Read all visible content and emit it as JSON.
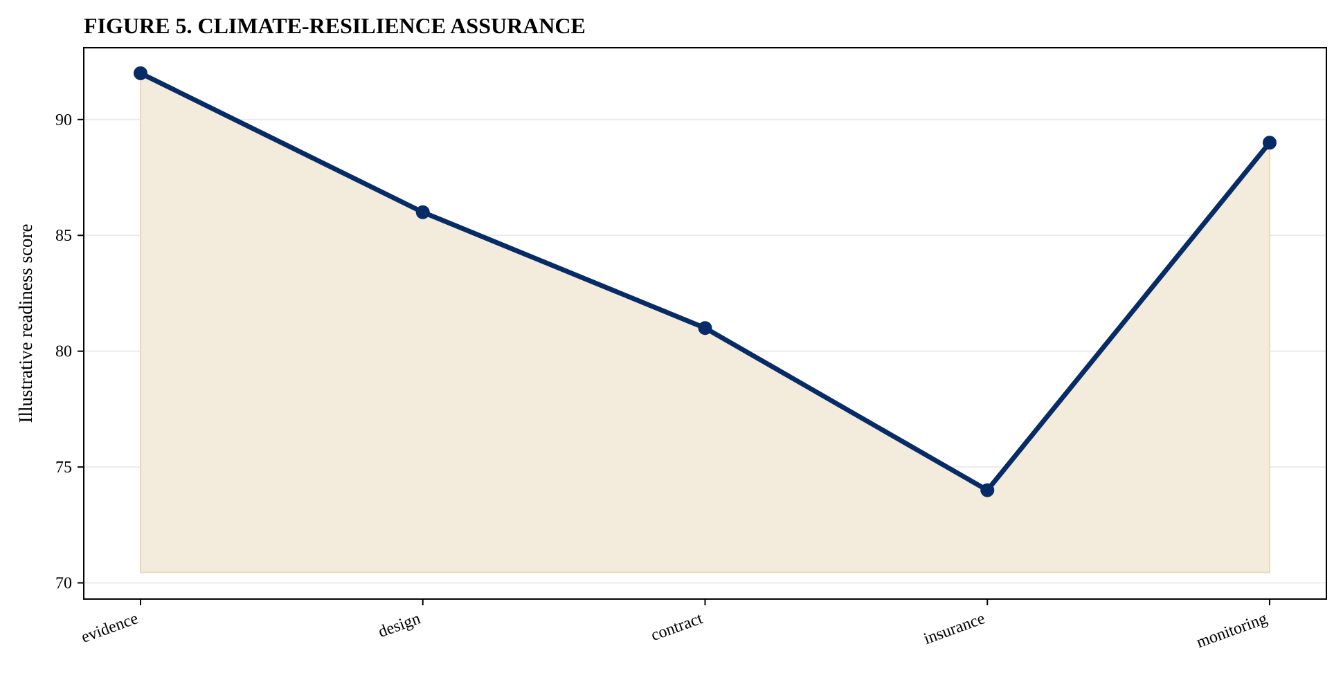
{
  "chart_data": {
    "type": "line",
    "title": "FIGURE 5. CLIMATE-RESILIENCE ASSURANCE",
    "xlabel": "",
    "ylabel": "Illustrative readiness score",
    "categories": [
      "evidence",
      "design",
      "contract",
      "insurance",
      "monitoring"
    ],
    "series": [
      {
        "values": [
          92,
          86,
          81,
          74,
          89
        ]
      }
    ],
    "ylim": [
      69.3,
      93.1
    ],
    "yticks": [
      70,
      75,
      80,
      85,
      90
    ],
    "y_tick_labels": [
      "70",
      "75",
      "80",
      "85",
      "90"
    ],
    "area_baseline": 70.45,
    "grid": "horizontal",
    "legend": "none",
    "x_tick_rotation": "slanted",
    "colors": {
      "line": "#062b66",
      "marker": "#062b66",
      "area_fill": "#f3ebdc",
      "area_edge": "#e8dbb9",
      "grid": "#ebebeb",
      "axes": "#000000"
    }
  }
}
